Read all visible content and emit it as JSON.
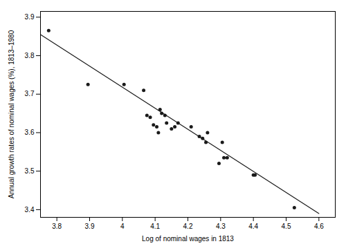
{
  "chart_data": {
    "type": "scatter",
    "xlabel": "Log of nominal wages in 1813",
    "ylabel": "Annual growth rates of nominal wages (%), 1813–1980",
    "series": [
      {
        "type": "scatter",
        "color": "#1a1a1a",
        "x": [
          3.775,
          3.895,
          4.005,
          4.065,
          4.075,
          4.085,
          4.095,
          4.105,
          4.11,
          4.115,
          4.12,
          4.13,
          4.135,
          4.15,
          4.16,
          4.17,
          4.21,
          4.235,
          4.245,
          4.255,
          4.26,
          4.295,
          4.305,
          4.31,
          4.32,
          4.4,
          4.405,
          4.525
        ],
        "values": [
          3.865,
          3.725,
          3.725,
          3.71,
          3.645,
          3.64,
          3.62,
          3.615,
          3.6,
          3.66,
          3.65,
          3.645,
          3.625,
          3.61,
          3.615,
          3.625,
          3.615,
          3.59,
          3.585,
          3.575,
          3.6,
          3.52,
          3.575,
          3.535,
          3.535,
          3.49,
          3.49,
          3.405
        ]
      },
      {
        "type": "line",
        "color": "#1a1a1a",
        "x": [
          3.75,
          4.6
        ],
        "values": [
          3.855,
          3.39
        ]
      }
    ],
    "xlim": [
      3.75,
      4.65
    ],
    "ylim": [
      3.38,
      3.915
    ],
    "xticks": [
      3.8,
      3.9,
      4.0,
      4.1,
      4.2,
      4.3,
      4.4,
      4.5,
      4.6
    ],
    "yticks": [
      3.4,
      3.5,
      3.6,
      3.7,
      3.8,
      3.9
    ],
    "grid": false
  }
}
